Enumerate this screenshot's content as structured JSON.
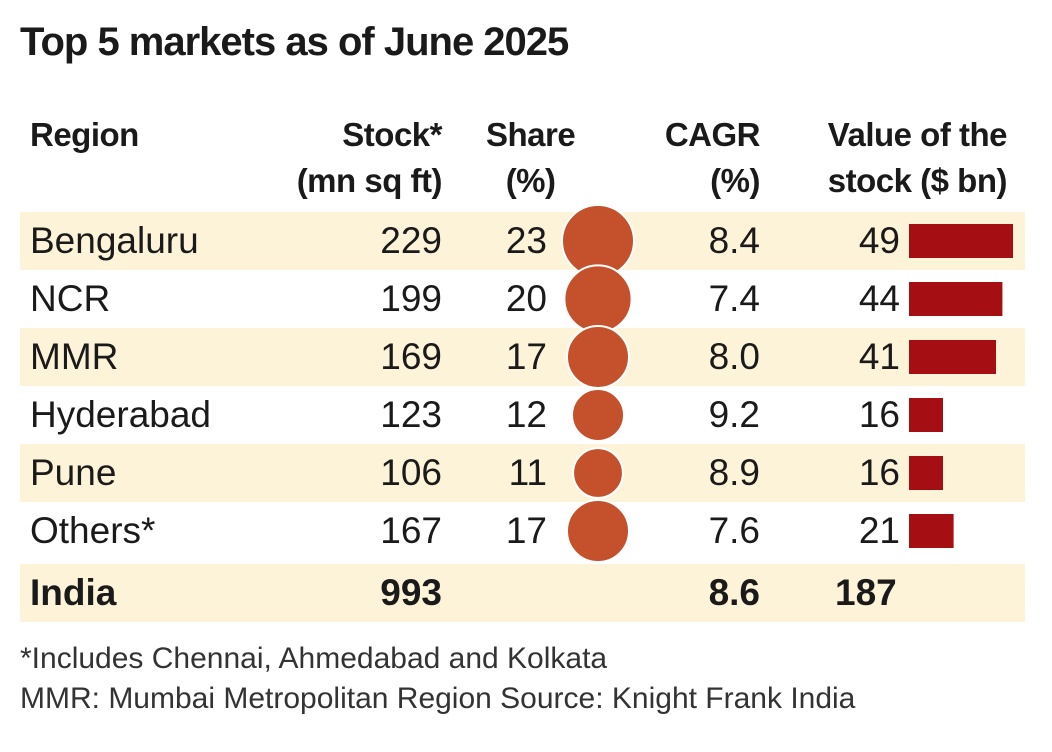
{
  "title": "Top 5 markets as of June 2025",
  "headers": {
    "region": "Region",
    "stock_line1": "Stock*",
    "stock_line2": "(mn sq ft)",
    "share_line1": "Share",
    "share_line2": "(%)",
    "cagr_line1": "CAGR",
    "cagr_line2": "(%)",
    "value_line1": "Value of the",
    "value_line2": "stock ($ bn)"
  },
  "rows": [
    {
      "region": "Bengaluru",
      "stock": "229",
      "share": "23",
      "cagr": "8.4",
      "value": "49"
    },
    {
      "region": "NCR",
      "stock": "199",
      "share": "20",
      "cagr": "7.4",
      "value": "44"
    },
    {
      "region": "MMR",
      "stock": "169",
      "share": "17",
      "cagr": "8.0",
      "value": "41"
    },
    {
      "region": "Hyderabad",
      "stock": "123",
      "share": "12",
      "cagr": "9.2",
      "value": "16"
    },
    {
      "region": "Pune",
      "stock": "106",
      "share": "11",
      "cagr": "8.9",
      "value": "16"
    },
    {
      "region": "Others*",
      "stock": "167",
      "share": "17",
      "cagr": "7.6",
      "value": "21"
    }
  ],
  "total": {
    "region": "India",
    "stock": "993",
    "cagr": "8.6",
    "value": "187"
  },
  "footnotes": {
    "line1": "*Includes Chennai, Ahmedabad and Kolkata",
    "line2": "MMR: Mumbai Metropolitan Region  Source: Knight Frank India"
  },
  "colors": {
    "bubble": "#c4512b",
    "bar": "#a50e12",
    "band": "#fdf3d8"
  },
  "chart_data": {
    "type": "table",
    "title": "Top 5 markets as of June 2025",
    "categories": [
      "Bengaluru",
      "NCR",
      "MMR",
      "Hyderabad",
      "Pune",
      "Others*"
    ],
    "series": [
      {
        "name": "Stock (mn sq ft)",
        "values": [
          229,
          199,
          169,
          123,
          106,
          167
        ]
      },
      {
        "name": "Share (%)",
        "values": [
          23,
          20,
          17,
          12,
          11,
          17
        ]
      },
      {
        "name": "CAGR (%)",
        "values": [
          8.4,
          7.4,
          8.0,
          9.2,
          8.9,
          7.6
        ]
      },
      {
        "name": "Value of the stock ($ bn)",
        "values": [
          49,
          44,
          41,
          16,
          16,
          21
        ]
      }
    ],
    "total": {
      "name": "India",
      "stock": 993,
      "cagr": 8.6,
      "value": 187
    }
  }
}
